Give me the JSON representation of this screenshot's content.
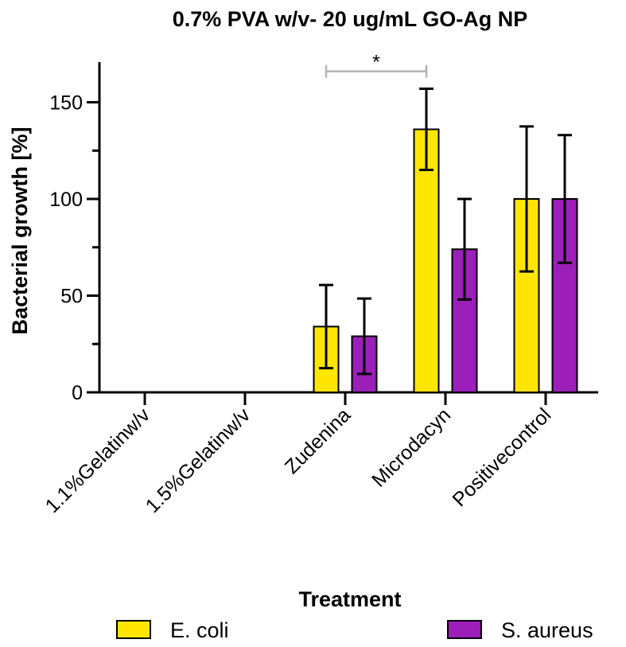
{
  "chart_data": {
    "type": "bar",
    "title": "0.7% PVA w/v- 20 ug/mL GO-Ag NP",
    "xlabel": "Treatment",
    "ylabel": "Bacterial growth [%]",
    "ylim": [
      0,
      170
    ],
    "yticks": [
      "0",
      "50",
      "100",
      "150"
    ],
    "categories": [
      "1.1%Gelatinw/v",
      "1.5%Gelatinw/v",
      "Zudenina",
      "Microdacyn",
      "Positivecontrol"
    ],
    "series": [
      {
        "name": "E. coli",
        "color": "#FFE600",
        "values": [
          null,
          null,
          34,
          136,
          100
        ],
        "errors": [
          null,
          null,
          21.5,
          21,
          37.5
        ]
      },
      {
        "name": "S. aureus",
        "color": "#9B1FB8",
        "values": [
          null,
          null,
          29,
          74,
          100
        ],
        "errors": [
          null,
          null,
          19.5,
          26,
          33
        ]
      }
    ],
    "annotations": [
      {
        "text": "*",
        "from_category": "Zudenina",
        "to_category": "Microdacyn",
        "y": 166
      }
    ],
    "legend_position": "bottom"
  }
}
